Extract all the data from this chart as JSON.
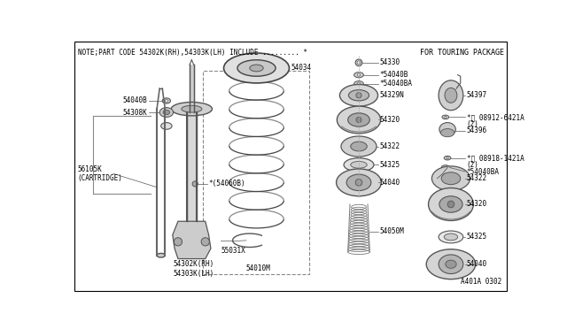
{
  "bg_color": "#ffffff",
  "lc": "#555555",
  "note_text": "NOTE;PART CODE 54302K(RH),54303K(LH) INCLUDE ......... *",
  "for_touring_text": "FOR TOURING PACKAGE",
  "diagram_code": "A401A 0302",
  "sfs": 5.5,
  "fs": 6.5
}
